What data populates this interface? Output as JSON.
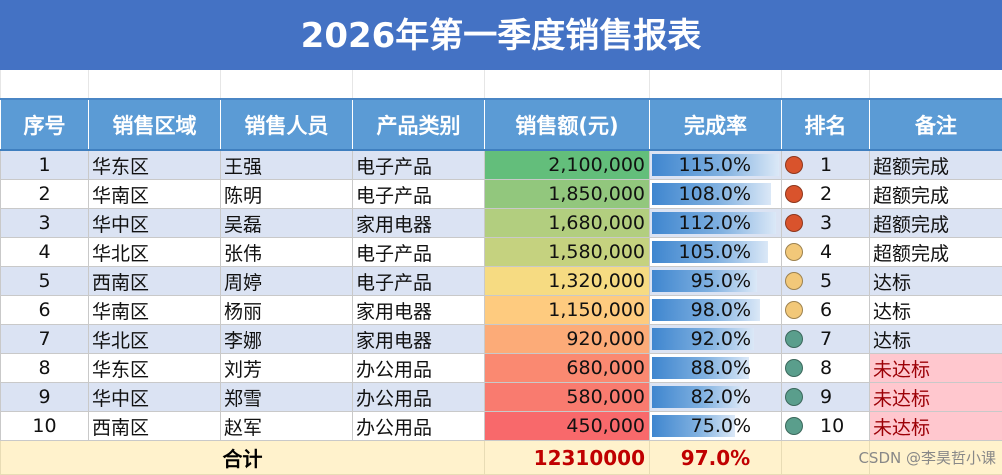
{
  "title": "2026年第一季度销售报表",
  "headers": [
    "序号",
    "销售区域",
    "销售人员",
    "产品类别",
    "销售额(元)",
    "完成率",
    "排名",
    "备注"
  ],
  "rows": [
    {
      "no": "1",
      "region": "华东区",
      "person": "王强",
      "category": "电子产品",
      "amount": "2,100,000",
      "amount_value": 2100000,
      "rate": "115.0%",
      "rate_value": 1.15,
      "rank": "1",
      "icon": "red",
      "note": "超额完成"
    },
    {
      "no": "2",
      "region": "华南区",
      "person": "陈明",
      "category": "电子产品",
      "amount": "1,850,000",
      "amount_value": 1850000,
      "rate": "108.0%",
      "rate_value": 1.08,
      "rank": "2",
      "icon": "red",
      "note": "超额完成"
    },
    {
      "no": "3",
      "region": "华中区",
      "person": "吴磊",
      "category": "家用电器",
      "amount": "1,680,000",
      "amount_value": 1680000,
      "rate": "112.0%",
      "rate_value": 1.12,
      "rank": "3",
      "icon": "red",
      "note": "超额完成"
    },
    {
      "no": "4",
      "region": "华北区",
      "person": "张伟",
      "category": "电子产品",
      "amount": "1,580,000",
      "amount_value": 1580000,
      "rate": "105.0%",
      "rate_value": 1.05,
      "rank": "4",
      "icon": "yellow",
      "note": "超额完成"
    },
    {
      "no": "5",
      "region": "西南区",
      "person": "周婷",
      "category": "电子产品",
      "amount": "1,320,000",
      "amount_value": 1320000,
      "rate": "95.0%",
      "rate_value": 0.95,
      "rank": "5",
      "icon": "yellow",
      "note": "达标"
    },
    {
      "no": "6",
      "region": "华南区",
      "person": "杨丽",
      "category": "家用电器",
      "amount": "1,150,000",
      "amount_value": 1150000,
      "rate": "98.0%",
      "rate_value": 0.98,
      "rank": "6",
      "icon": "yellow",
      "note": "达标"
    },
    {
      "no": "7",
      "region": "华北区",
      "person": "李娜",
      "category": "家用电器",
      "amount": "920,000",
      "amount_value": 920000,
      "rate": "92.0%",
      "rate_value": 0.92,
      "rank": "7",
      "icon": "green",
      "note": "达标"
    },
    {
      "no": "8",
      "region": "华东区",
      "person": "刘芳",
      "category": "办公用品",
      "amount": "680,000",
      "amount_value": 680000,
      "rate": "88.0%",
      "rate_value": 0.88,
      "rank": "8",
      "icon": "green",
      "note": "未达标"
    },
    {
      "no": "9",
      "region": "华中区",
      "person": "郑雪",
      "category": "办公用品",
      "amount": "580,000",
      "amount_value": 580000,
      "rate": "82.0%",
      "rate_value": 0.82,
      "rank": "9",
      "icon": "green",
      "note": "未达标"
    },
    {
      "no": "10",
      "region": "西南区",
      "person": "赵军",
      "category": "办公用品",
      "amount": "450,000",
      "amount_value": 450000,
      "rate": "75.0%",
      "rate_value": 0.75,
      "rank": "10",
      "icon": "green",
      "note": "未达标"
    }
  ],
  "total": {
    "label": "合计",
    "amount": "12310000",
    "rate": "97.0%"
  },
  "icon_colors": {
    "red": "#d9532c",
    "yellow": "#f2c879",
    "green": "#5a9e8c"
  },
  "watermark": "CSDN @李昊哲小课"
}
